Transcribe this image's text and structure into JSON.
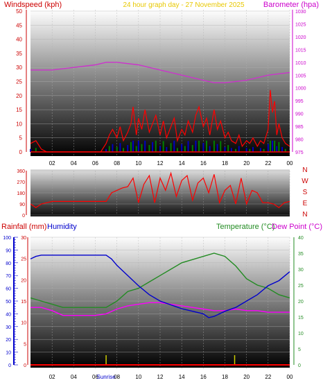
{
  "header": {
    "left_label": "Windspeed (kph)",
    "center_label": "24 hour graph day - 27 November 2025",
    "right_label": "Barometer (hpa)"
  },
  "direction_panel": {
    "compass_labels": [
      "N",
      "W",
      "S",
      "E",
      "N"
    ]
  },
  "bottom_panel": {
    "rainfall_label": "Rainfall (mm)",
    "humidity_label": "Humidity",
    "temperature_label": "Temperature (°C)",
    "dewpoint_label": "Dew Point (°C)",
    "sunrise_label": "Sunrise"
  },
  "colors": {
    "wind": "#ff0000",
    "gust_green": "#008000",
    "gust_blue": "#0000c0",
    "barometer": "#cc33cc",
    "direction": "#ff0000",
    "humidity": "#0000cc",
    "temperature": "#228b22",
    "dewpoint": "#ff00ff",
    "rain": "#ff0000",
    "sun": "#cccc00"
  },
  "chart_data": [
    {
      "type": "line",
      "x_unit": "hour",
      "xticks": [
        "02",
        "04",
        "06",
        "08",
        "10",
        "12",
        "14",
        "16",
        "18",
        "20",
        "22",
        "00"
      ],
      "series": [
        {
          "axis": "left",
          "x": [
            0,
            0.5,
            1,
            1.5,
            2,
            3,
            4,
            5,
            6,
            6.5,
            7,
            7.3,
            7.6,
            8,
            8.3,
            8.6,
            9,
            9.3,
            9.5,
            9.8,
            10,
            10.3,
            10.6,
            11,
            11.3,
            11.6,
            12,
            12.3,
            12.6,
            13,
            13.3,
            13.6,
            14,
            14.3,
            14.6,
            15,
            15.3,
            15.6,
            16,
            16.3,
            16.6,
            17,
            17.3,
            17.6,
            18,
            18.3,
            18.6,
            19,
            19.3,
            19.6,
            20,
            20.3,
            20.6,
            21,
            21.3,
            21.6,
            22,
            22.2,
            22.4,
            22.6,
            22.8,
            23,
            23.3,
            23.6,
            24
          ],
          "values": [
            3,
            4,
            1,
            0,
            0,
            0,
            0,
            0,
            0,
            0,
            3,
            6,
            8,
            5,
            9,
            4,
            7,
            10,
            16,
            6,
            12,
            8,
            15,
            7,
            10,
            13,
            6,
            11,
            5,
            9,
            12,
            4,
            8,
            6,
            11,
            7,
            13,
            16,
            9,
            12,
            6,
            15,
            8,
            11,
            5,
            7,
            4,
            3,
            6,
            2,
            4,
            3,
            5,
            2,
            4,
            3,
            8,
            22,
            14,
            18,
            6,
            10,
            5,
            3,
            2
          ]
        },
        {
          "axis": "right",
          "x": [
            0,
            2,
            4,
            6,
            7,
            8,
            10,
            12,
            14,
            16,
            17,
            18,
            20,
            22,
            24
          ],
          "values": [
            1007,
            1007,
            1008,
            1009,
            1010,
            1010,
            1009,
            1007,
            1005,
            1003,
            1002,
            1002,
            1003,
            1005,
            1006
          ]
        }
      ],
      "ylabel": "Windspeed (kph)",
      "y2label": "Barometer (hpa)",
      "ylim": [
        0,
        50
      ],
      "y2lim": [
        975,
        1030
      ],
      "yticks": [
        0,
        5,
        10,
        15,
        20,
        25,
        30,
        35,
        40,
        45,
        50
      ],
      "y2ticks": [
        975,
        980,
        985,
        990,
        995,
        1000,
        1005,
        1010,
        1015,
        1020,
        1025,
        1030
      ],
      "grid": true
    },
    {
      "type": "line",
      "x_unit": "hour",
      "series": [
        {
          "x": [
            0,
            0.5,
            1,
            1.5,
            2,
            3,
            4,
            5,
            6,
            6.5,
            7,
            7.5,
            8,
            8.5,
            9,
            9.5,
            10,
            10.5,
            11,
            11.5,
            12,
            12.5,
            13,
            13.5,
            14,
            14.5,
            15,
            15.5,
            16,
            16.5,
            17,
            17.5,
            18,
            18.5,
            19,
            19.5,
            20,
            20.5,
            21,
            21.5,
            22,
            22.5,
            23,
            23.5,
            24
          ],
          "values": [
            90,
            60,
            90,
            100,
            110,
            110,
            110,
            110,
            110,
            110,
            110,
            180,
            200,
            220,
            230,
            300,
            100,
            250,
            320,
            100,
            300,
            200,
            340,
            150,
            280,
            320,
            120,
            260,
            300,
            180,
            330,
            100,
            200,
            240,
            90,
            300,
            90,
            200,
            180,
            100,
            100,
            90,
            60,
            100,
            110
          ]
        }
      ],
      "ylim": [
        0,
        360
      ],
      "yticks": [
        0,
        90,
        180,
        270,
        360
      ],
      "grid": true
    },
    {
      "type": "line",
      "x_unit": "hour",
      "xticks": [
        "02",
        "04",
        "06",
        "Sunrise",
        "08",
        "10",
        "12",
        "14",
        "16",
        "18",
        "20",
        "22",
        "00"
      ],
      "series": [
        {
          "name": "Humidity",
          "axis": "humidity",
          "x": [
            0,
            0.5,
            1,
            2,
            3,
            4,
            5,
            6,
            6.5,
            7,
            7.5,
            8,
            9,
            10,
            11,
            12,
            13,
            14,
            15,
            16,
            16.5,
            17,
            17.5,
            18,
            19,
            20,
            21,
            22,
            23,
            24
          ],
          "values": [
            83,
            85,
            86,
            86,
            86,
            86,
            86,
            86,
            86,
            86,
            83,
            78,
            70,
            62,
            55,
            50,
            47,
            44,
            42,
            40,
            37,
            38,
            40,
            42,
            45,
            50,
            55,
            62,
            66,
            73
          ]
        },
        {
          "name": "Temperature (°C)",
          "axis": "temperature",
          "x": [
            0,
            1,
            2,
            3,
            4,
            5,
            6,
            7,
            8,
            9,
            10,
            11,
            12,
            13,
            14,
            15,
            16,
            17,
            18,
            19,
            20,
            21,
            22,
            23,
            24
          ],
          "values": [
            21,
            20,
            19,
            18,
            18,
            18,
            18,
            18,
            20,
            23,
            24,
            26,
            28,
            30,
            32,
            33,
            34,
            35,
            34,
            31,
            27,
            25,
            24,
            22,
            21
          ]
        },
        {
          "name": "Dew Point (°C)",
          "axis": "temperature",
          "x": [
            0,
            1,
            2,
            3,
            4,
            5,
            6,
            7,
            8,
            9,
            10,
            11,
            12,
            13,
            14,
            15,
            16,
            17,
            18,
            19,
            20,
            21,
            22,
            23,
            24
          ],
          "values": [
            18,
            18,
            17,
            15.5,
            15.5,
            15.5,
            15.5,
            16,
            17.5,
            18.5,
            19,
            19.5,
            19.5,
            19,
            18.5,
            18,
            17.5,
            17,
            17,
            17.5,
            17,
            17,
            16.5,
            16.5,
            16.5
          ]
        },
        {
          "name": "Rainfall (mm)",
          "axis": "rainfall",
          "x": [
            0,
            24
          ],
          "values": [
            0,
            0
          ]
        }
      ],
      "rainfall_ticks": [
        0,
        5,
        10,
        15,
        20,
        25,
        30
      ],
      "humidity_ticks": [
        0,
        10,
        20,
        30,
        40,
        50,
        60,
        70,
        80,
        90,
        100
      ],
      "temperature_ticks": [
        0,
        5,
        10,
        15,
        20,
        25,
        30,
        35,
        40
      ],
      "rainfall_lim": [
        0,
        30
      ],
      "humidity_lim": [
        0,
        100
      ],
      "temperature_lim": [
        0,
        40
      ],
      "sun_events_hour": [
        7.0,
        18.9
      ],
      "grid": true
    }
  ]
}
